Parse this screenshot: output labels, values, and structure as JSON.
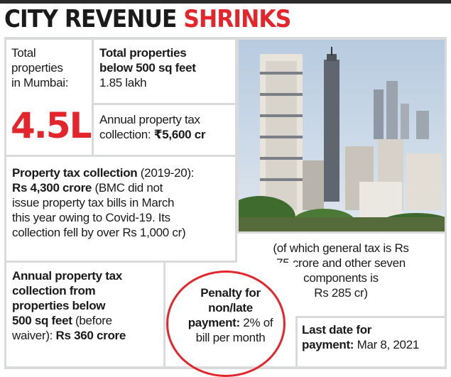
{
  "headline": {
    "part1": "CITY REVENUE",
    "part2": "SHRINKS"
  },
  "total_properties": {
    "label_lines": [
      "Total",
      "properties",
      "in Mumbai:"
    ],
    "value": "4.5L"
  },
  "below_500": {
    "label_lines": [
      "Total properties",
      "below 500 sq feet"
    ],
    "value": "1.85 lakh"
  },
  "annual_tax": {
    "line1": "Annual property tax",
    "line2_label": "collection: ",
    "line2_value": "₹5,600 cr"
  },
  "collection_2019": {
    "line1_bold": "Property tax collection",
    "line1_rest": " (2019-20):",
    "line2_bold": "Rs 4,300 crore",
    "line2_rest": " (BMC did not",
    "line3": "issue property tax bills in March",
    "line4": "this year owing to Covid-19. Its",
    "line5": "collection fell by over Rs 1,000 cr)"
  },
  "general_tax": {
    "lines": [
      "(of which general tax is Rs",
      "75 crore and other seven",
      "components is",
      "Rs 285 cr)"
    ]
  },
  "below_500_collection": {
    "line1": "Annual property tax",
    "line2": "collection from",
    "line3": "properties below",
    "line4_bold": "500 sq feet",
    "line4_rest": " (before",
    "line5_rest": "waiver): ",
    "line5_bold": "Rs 360 crore"
  },
  "penalty": {
    "line1": "Penalty for",
    "line2": "non/late",
    "line3_bold": "payment:",
    "line3_rest": " 2% of",
    "line4": "bill per month"
  },
  "last_date": {
    "line1": "Last date for",
    "line2_bold": "payment:",
    "line2_rest": " Mar 8, 2021"
  },
  "colors": {
    "accent_red": "#e3262b",
    "panel_gray": "#d9dadb"
  }
}
